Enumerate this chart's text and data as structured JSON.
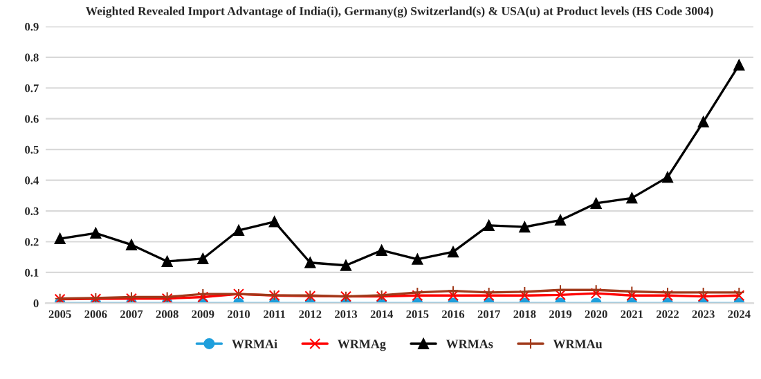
{
  "chart_data": {
    "type": "line",
    "title": "Weighted Revealed Import Advantage of India(i), Germany(g) Switzerland(s) & USA(u) at Product levels (HS Code 3004)",
    "categories": [
      "2005",
      "2006",
      "2007",
      "2008",
      "2009",
      "2010",
      "2011",
      "2012",
      "2013",
      "2014",
      "2015",
      "2016",
      "2017",
      "2018",
      "2019",
      "2020",
      "2021",
      "2022",
      "2023",
      "2024"
    ],
    "series": [
      {
        "name": "WRMAi",
        "color": "#1f9fdc",
        "marker": "circle",
        "values": [
          0,
          0,
          0,
          0,
          0,
          0,
          0,
          0,
          0,
          0,
          0,
          0,
          0,
          0,
          0,
          0,
          0,
          0,
          0,
          0
        ]
      },
      {
        "name": "WRMAg",
        "color": "#ff0000",
        "marker": "cross",
        "values": [
          0.013,
          0.014,
          0.015,
          0.015,
          0.02,
          0.03,
          0.025,
          0.023,
          0.022,
          0.022,
          0.025,
          0.025,
          0.025,
          0.025,
          0.027,
          0.032,
          0.025,
          0.025,
          0.022,
          0.025
        ]
      },
      {
        "name": "WRMAs",
        "color": "#000000",
        "marker": "triangle",
        "values": [
          0.21,
          0.228,
          0.19,
          0.136,
          0.145,
          0.237,
          0.265,
          0.132,
          0.123,
          0.172,
          0.143,
          0.167,
          0.253,
          0.248,
          0.27,
          0.325,
          0.342,
          0.41,
          0.59,
          0.775
        ]
      },
      {
        "name": "WRMAu",
        "color": "#a0391a",
        "marker": "plus",
        "values": [
          0.015,
          0.017,
          0.02,
          0.02,
          0.03,
          0.03,
          0.026,
          0.025,
          0.022,
          0.026,
          0.035,
          0.04,
          0.035,
          0.037,
          0.043,
          0.043,
          0.038,
          0.035,
          0.035,
          0.035
        ]
      }
    ],
    "ylim": [
      0,
      0.9
    ],
    "yticks": [
      0,
      0.1,
      0.2,
      0.3,
      0.4,
      0.5,
      0.6,
      0.7,
      0.8,
      0.9
    ],
    "grid": "y",
    "legend": "bottom"
  }
}
